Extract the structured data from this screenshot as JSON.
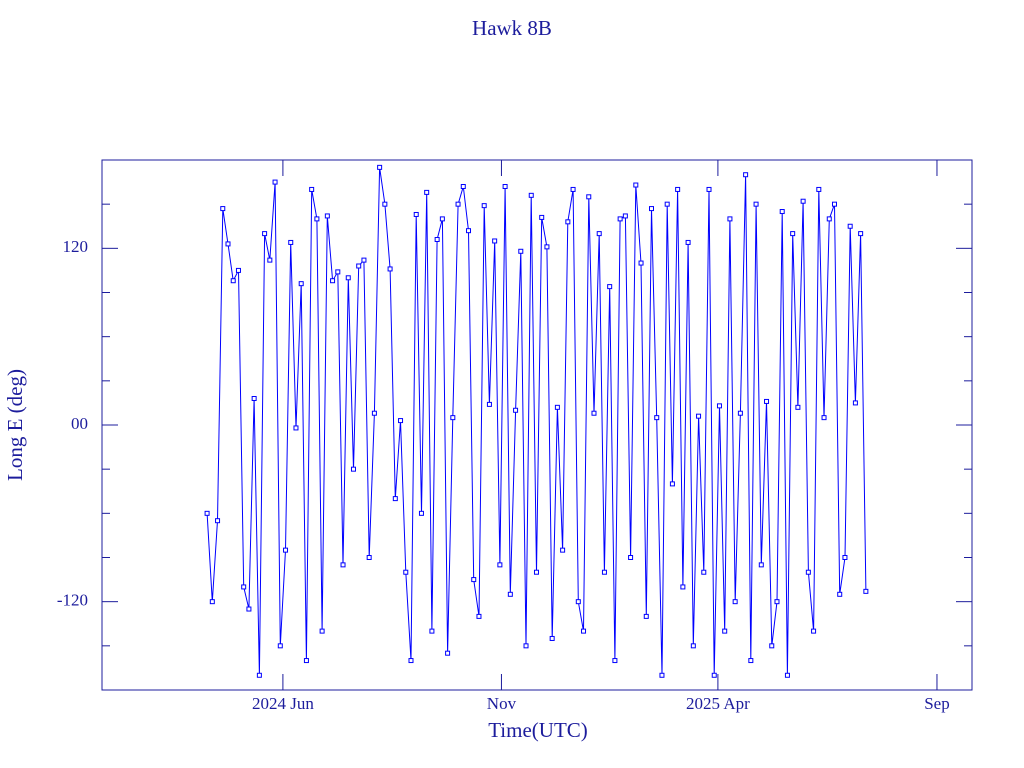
{
  "chart_data": {
    "type": "line",
    "title": "Hawk 8B",
    "xlabel": "Time(UTC)",
    "ylabel": "Long E (deg)",
    "xlim": [
      2024.069,
      2025.733
    ],
    "ylim": [
      -180,
      180
    ],
    "xticks": [
      {
        "value": 2024.415,
        "label": "2024 Jun"
      },
      {
        "value": 2024.833,
        "label": "Nov"
      },
      {
        "value": 2025.247,
        "label": "2025 Apr"
      },
      {
        "value": 2025.666,
        "label": "Sep"
      }
    ],
    "yticks": [
      -120,
      {
        "value": 0,
        "label": "00"
      },
      120
    ],
    "yminor_ticks": [
      -150,
      -90,
      -60,
      -30,
      30,
      60,
      90,
      150
    ],
    "markers": true,
    "series": [
      {
        "name": "Hawk 8B",
        "color": "#0000ff",
        "x": [
          2024.27,
          2024.28,
          2024.29,
          2024.3,
          2024.31,
          2024.32,
          2024.33,
          2024.34,
          2024.35,
          2024.36,
          2024.37,
          2024.38,
          2024.39,
          2024.4,
          2024.41,
          2024.42,
          2024.43,
          2024.44,
          2024.45,
          2024.46,
          2024.47,
          2024.48,
          2024.49,
          2024.5,
          2024.51,
          2024.52,
          2024.53,
          2024.54,
          2024.55,
          2024.56,
          2024.57,
          2024.58,
          2024.59,
          2024.6,
          2024.61,
          2024.62,
          2024.63,
          2024.64,
          2024.65,
          2024.66,
          2024.67,
          2024.68,
          2024.69,
          2024.7,
          2024.71,
          2024.72,
          2024.73,
          2024.74,
          2024.75,
          2024.76,
          2024.77,
          2024.78,
          2024.79,
          2024.8,
          2024.81,
          2024.82,
          2024.83,
          2024.84,
          2024.85,
          2024.86,
          2024.87,
          2024.88,
          2024.89,
          2024.9,
          2024.91,
          2024.92,
          2024.93,
          2024.94,
          2024.95,
          2024.96,
          2024.97,
          2024.98,
          2024.99,
          2025.0,
          2025.01,
          2025.02,
          2025.03,
          2025.04,
          2025.05,
          2025.06,
          2025.07,
          2025.08,
          2025.09,
          2025.1,
          2025.11,
          2025.12,
          2025.13,
          2025.14,
          2025.15,
          2025.16,
          2025.17,
          2025.18,
          2025.19,
          2025.2,
          2025.21,
          2025.22,
          2025.23,
          2025.24,
          2025.25,
          2025.26,
          2025.27,
          2025.28,
          2025.29,
          2025.3,
          2025.31,
          2025.32,
          2025.33,
          2025.34,
          2025.35,
          2025.36,
          2025.37,
          2025.38,
          2025.39,
          2025.4,
          2025.41,
          2025.42,
          2025.43,
          2025.44,
          2025.45,
          2025.46,
          2025.47,
          2025.48,
          2025.49,
          2025.5,
          2025.51,
          2025.52,
          2025.53
        ],
        "values": [
          -60,
          -120,
          -65,
          147,
          123,
          98,
          105,
          -110,
          -125,
          18,
          -170,
          130,
          112,
          165,
          -150,
          -85,
          124,
          -2,
          96,
          -160,
          160,
          140,
          -140,
          142,
          98,
          104,
          -95,
          100,
          -30,
          108,
          112,
          -90,
          8,
          175,
          150,
          106,
          -50,
          3,
          -100,
          -160,
          143,
          -60,
          158,
          -140,
          126,
          140,
          -155,
          5,
          150,
          162,
          132,
          -105,
          -130,
          149,
          14,
          125,
          -95,
          162,
          -115,
          10,
          118,
          -150,
          156,
          -100,
          141,
          121,
          -145,
          12,
          -85,
          138,
          160,
          -120,
          -140,
          155,
          8,
          130,
          -100,
          94,
          -160,
          140,
          142,
          -90,
          163,
          110,
          -130,
          147,
          5,
          -170,
          150,
          -40,
          160,
          -110,
          124,
          -150,
          6,
          -100,
          160,
          -170,
          13,
          -140,
          140,
          -120,
          8,
          170,
          -160,
          150,
          -95,
          16,
          -150,
          -120,
          145,
          -170,
          130,
          12,
          152,
          -100,
          -140,
          160,
          5,
          140,
          150,
          -115,
          -90,
          135,
          15,
          130,
          -113
        ]
      }
    ]
  }
}
